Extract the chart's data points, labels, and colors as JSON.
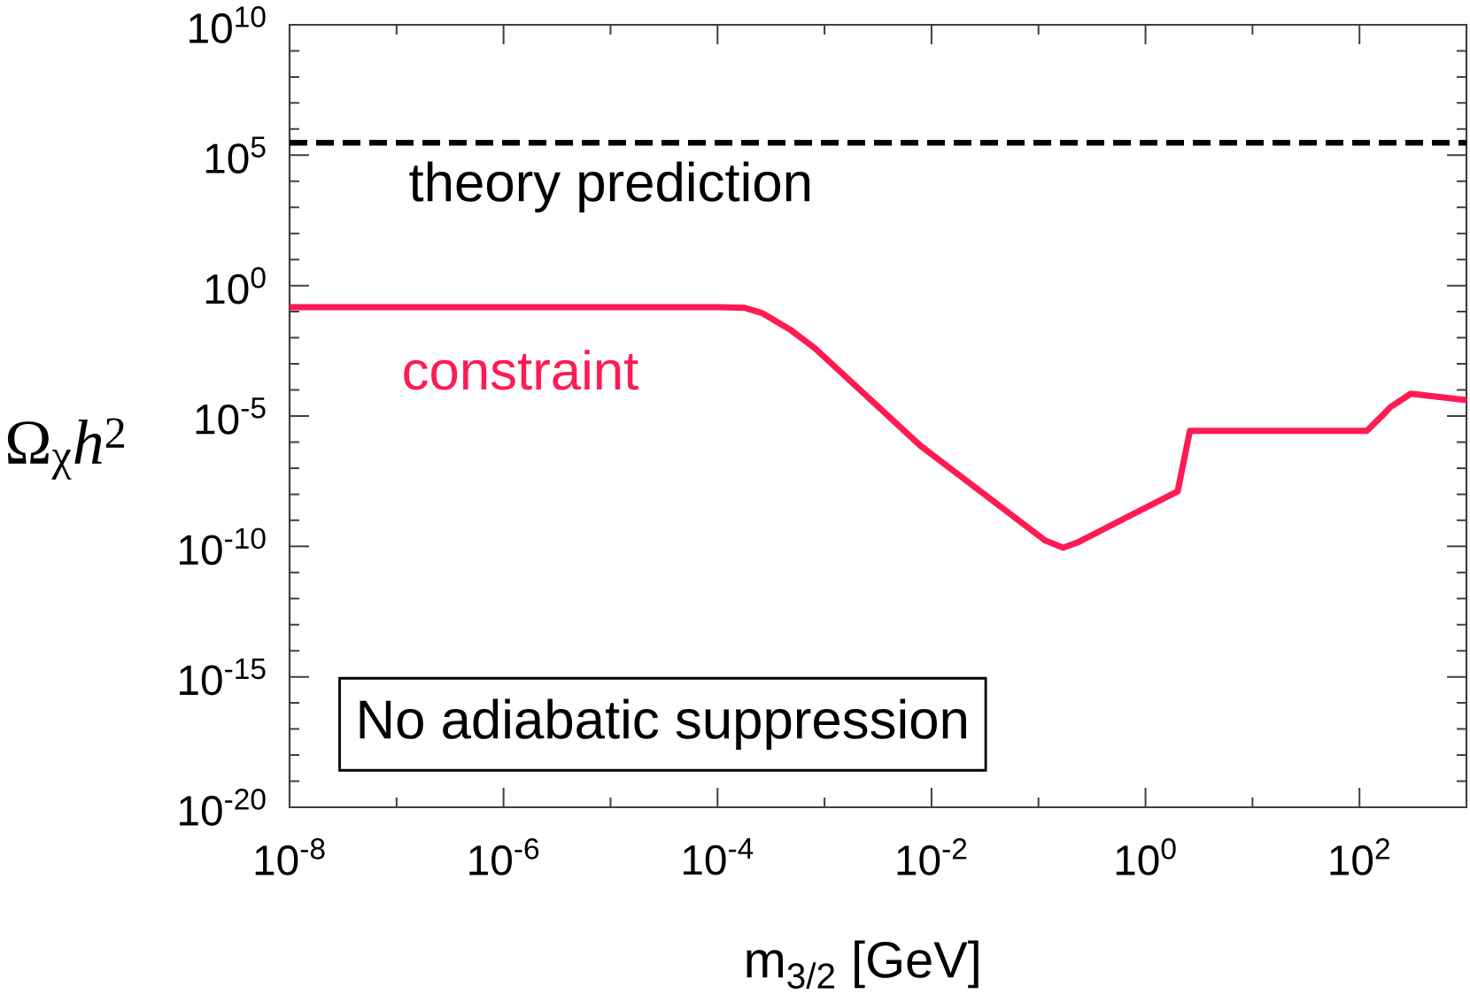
{
  "chart_data": {
    "type": "line",
    "xlabel": "m$_{3/2}$ [GeV]",
    "ylabel": "Ω$_{χ}$*h*$^{2}$",
    "annotations": [
      "No adiabatic suppression"
    ],
    "x": [
      1e-08,
      0.0001,
      0.00018,
      0.00026,
      0.00049,
      0.00081,
      0.0079,
      0.115,
      0.17,
      0.23,
      2.0,
      2.6,
      117,
      162,
      195,
      302,
      1000
    ],
    "series": [
      {
        "name": "constraint",
        "color": "#ff1a53",
        "values": [
          0.15,
          0.15,
          0.14,
          0.089,
          0.019,
          0.004,
          7.2e-07,
          1.7e-10,
          8.9e-11,
          1.4e-10,
          1.3e-08,
          2.7e-06,
          2.7e-06,
          1e-05,
          2.2e-05,
          7.2e-05,
          4.1e-05
        ]
      }
    ],
    "xlim": [
      1e-08,
      1000
    ],
    "ylim": [
      1e-20,
      10000000000.0
    ],
    "xticks": [
      {
        "value": 1e-08,
        "label": "10$^{-8}$"
      },
      {
        "value": 1e-07,
        "label": null
      },
      {
        "value": 1e-06,
        "label": "10$^{-6}$"
      },
      {
        "value": 1e-05,
        "label": null
      },
      {
        "value": 0.0001,
        "label": "10$^{-4}$"
      },
      {
        "value": 0.001,
        "label": null
      },
      {
        "value": 0.01,
        "label": "10$^{-2}$"
      },
      {
        "value": 0.1,
        "label": null
      },
      {
        "value": 1,
        "label": "10$^{0}$"
      },
      {
        "value": 10,
        "label": null
      },
      {
        "value": 100,
        "label": "10$^{2}$"
      }
    ],
    "yticks": [
      {
        "value": 1e-20,
        "label": "10$^{-20}$"
      },
      {
        "value": 1e-19,
        "label": null
      },
      {
        "value": 1e-18,
        "label": null
      },
      {
        "value": 1e-17,
        "label": null
      },
      {
        "value": 1e-16,
        "label": null
      },
      {
        "value": 1e-15,
        "label": "10$^{-15}$"
      },
      {
        "value": 1e-14,
        "label": null
      },
      {
        "value": 1e-13,
        "label": null
      },
      {
        "value": 1e-12,
        "label": null
      },
      {
        "value": 1e-11,
        "label": null
      },
      {
        "value": 1e-10,
        "label": "10$^{-10}$"
      },
      {
        "value": 1e-09,
        "label": null
      },
      {
        "value": 1e-08,
        "label": null
      },
      {
        "value": 1e-07,
        "label": null
      },
      {
        "value": 1e-06,
        "label": null
      },
      {
        "value": 1e-05,
        "label": "10$^{-5}$"
      },
      {
        "value": 0.0001,
        "label": null
      },
      {
        "value": 0.001,
        "label": null
      },
      {
        "value": 0.01,
        "label": null
      },
      {
        "value": 0.1,
        "label": null
      },
      {
        "value": 1,
        "label": "10$^{0}$"
      },
      {
        "value": 10,
        "label": null
      },
      {
        "value": 100,
        "label": null
      },
      {
        "value": 1000,
        "label": null
      },
      {
        "value": 10000,
        "label": null
      },
      {
        "value": 100000,
        "label": "10$^{5}$"
      },
      {
        "value": 1000000.0,
        "label": null
      },
      {
        "value": 10000000.0,
        "label": null
      },
      {
        "value": 100000000.0,
        "label": null
      },
      {
        "value": 1000000000.0,
        "label": null
      },
      {
        "value": 10000000000.0,
        "label": "10$^{10}$"
      }
    ],
    "log": "xy",
    "ref_lines": [
      {
        "axis": "y",
        "value": 300000,
        "label": "theory prediction",
        "color": "#000000",
        "line_style": "dashed"
      }
    ]
  }
}
